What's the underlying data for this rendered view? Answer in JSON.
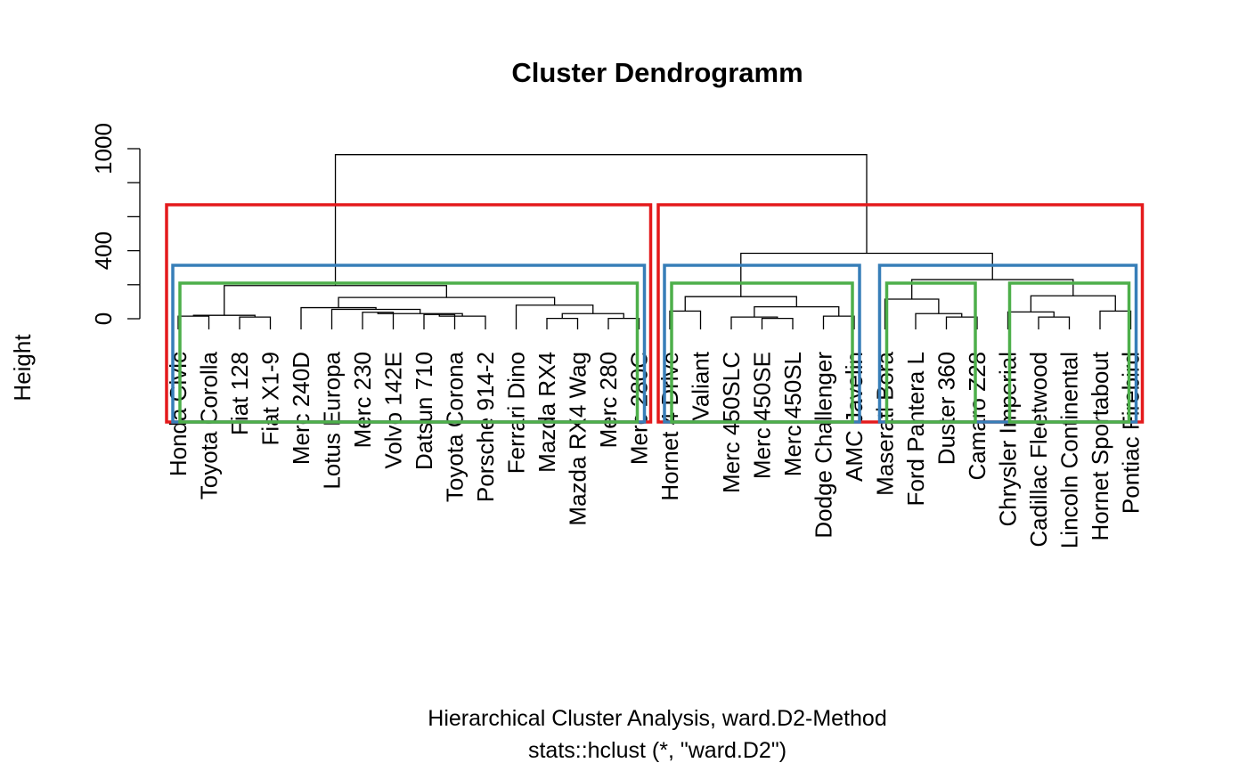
{
  "chart_data": {
    "type": "dendrogram",
    "title": "Cluster Dendrogramm",
    "ylabel": "Height",
    "xlabel": "Hierarchical Cluster Analysis, ward.D2-Method",
    "subtitle": "stats::hclust (*, \"ward.D2\")",
    "yticks": [
      0,
      400,
      1000
    ],
    "yaxis_range": [
      0,
      1000
    ],
    "leaves": [
      "Honda Civic",
      "Toyota Corolla",
      "Fiat 128",
      "Fiat X1-9",
      "Merc 240D",
      "Lotus Europa",
      "Merc 230",
      "Volvo 142E",
      "Datsun 710",
      "Toyota Corona",
      "Porsche 914-2",
      "Ferrari Dino",
      "Mazda RX4",
      "Mazda RX4 Wag",
      "Merc 280",
      "Merc 280C",
      "Hornet 4 Drive",
      "Valiant",
      "Merc 450SLC",
      "Merc 450SE",
      "Merc 450SL",
      "Dodge Challenger",
      "AMC Javelin",
      "Maserati Bora",
      "Ford Pantera L",
      "Duster 360",
      "Camaro Z28",
      "Chrysler Imperial",
      "Cadillac Fleetwood",
      "Lincoln Continental",
      "Hornet Sportabout",
      "Pontiac Firebird"
    ],
    "merges": [
      {
        "left": 0,
        "right": 1,
        "height": 15
      },
      {
        "left": 2,
        "right": 3,
        "height": 10
      },
      {
        "left": "c0",
        "right": "c1",
        "height": 20
      },
      {
        "left": 6,
        "right": 7,
        "height": 38
      },
      {
        "left": 8,
        "right": 9,
        "height": 25
      },
      {
        "left": "c4",
        "right": 10,
        "height": 15
      },
      {
        "left": "c3",
        "right": "c5",
        "height": 30
      },
      {
        "left": 5,
        "right": "c6",
        "height": 55
      },
      {
        "left": 4,
        "right": "c7",
        "height": 65
      },
      {
        "left": 12,
        "right": 13,
        "height": 2
      },
      {
        "left": 14,
        "right": 15,
        "height": 2
      },
      {
        "left": "c9",
        "right": "c10",
        "height": 30
      },
      {
        "left": 11,
        "right": "c11",
        "height": 80
      },
      {
        "left": "c8",
        "right": "c12",
        "height": 125
      },
      {
        "left": "c2",
        "right": "c13",
        "height": 195
      },
      {
        "left": 16,
        "right": 17,
        "height": 45
      },
      {
        "left": 19,
        "right": 20,
        "height": 2
      },
      {
        "left": 18,
        "right": "c16",
        "height": 10
      },
      {
        "left": 21,
        "right": 22,
        "height": 15
      },
      {
        "left": "c17",
        "right": "c18",
        "height": 70
      },
      {
        "left": "c15",
        "right": "c19",
        "height": 130
      },
      {
        "left": 25,
        "right": 26,
        "height": 10
      },
      {
        "left": 24,
        "right": "c21",
        "height": 30
      },
      {
        "left": 23,
        "right": "c22",
        "height": 115
      },
      {
        "left": 28,
        "right": 29,
        "height": 10
      },
      {
        "left": 27,
        "right": "c24",
        "height": 40
      },
      {
        "left": 30,
        "right": 31,
        "height": 45
      },
      {
        "left": "c25",
        "right": "c26",
        "height": 135
      },
      {
        "left": "c23",
        "right": "c27",
        "height": 230
      },
      {
        "left": "c20",
        "right": "c28",
        "height": 385
      },
      {
        "left": "c14",
        "right": "c29",
        "height": 965
      }
    ],
    "cluster_boxes": [
      {
        "k": 2,
        "color": "#E41A1C",
        "groups": [
          [
            0,
            15
          ],
          [
            16,
            31
          ]
        ]
      },
      {
        "k": 3,
        "color": "#377EB8",
        "groups": [
          [
            0,
            15
          ],
          [
            16,
            22
          ],
          [
            23,
            31
          ]
        ]
      },
      {
        "k": 4,
        "color": "#4DAF4A",
        "groups": [
          [
            0,
            15
          ],
          [
            16,
            22
          ],
          [
            23,
            26
          ],
          [
            27,
            31
          ]
        ]
      }
    ]
  }
}
